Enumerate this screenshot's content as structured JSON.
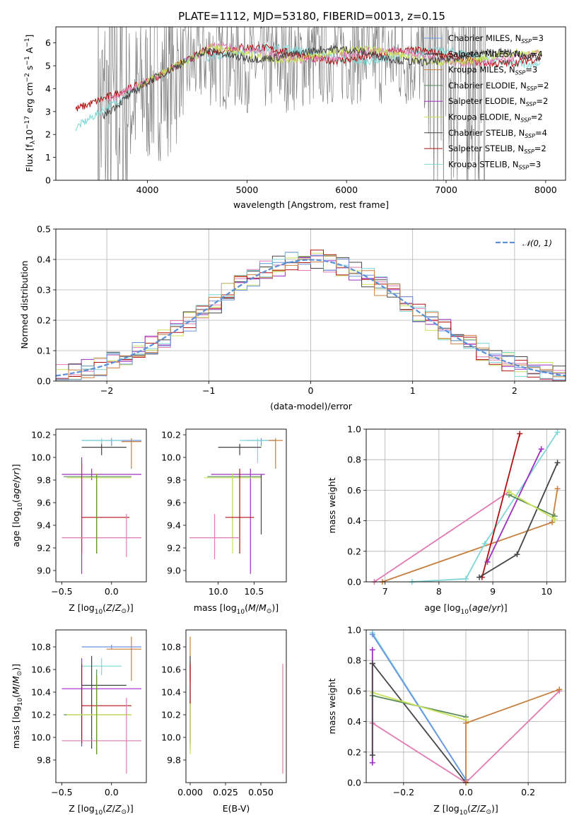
{
  "page": {
    "title": "PLATE=1112, MJD=53180, FIBERID=0013, z=0.15"
  },
  "colors": {
    "chabrier_miles": "#6b94e0",
    "salpeter_miles": "#1a1a1a",
    "kroupa_miles": "#c77f3e",
    "chabrier_elodie": "#5a8a5a",
    "salpeter_elodie": "#9b30c0",
    "kroupa_elodie": "#c9e35a",
    "chabrier_stelib": "#444444",
    "salpeter_stelib": "#b01010",
    "kroupa_stelib": "#7fd6d6",
    "data": "#808080",
    "normal": "#5b8fd8",
    "pink": "#e07ab0",
    "olive": "#6a9a20"
  },
  "chart_data": [
    {
      "type": "line",
      "id": "spectrum",
      "title": "PLATE=1112, MJD=53180, FIBERID=0013, z=0.15",
      "xlabel": "wavelength [Angstrom, rest frame]",
      "ylabel": "Flux [f",
      "ylabel_sub": "λ",
      "ylabel_rest": "10",
      "ylabel_exp1": "−17",
      "ylabel_mid": " erg cm",
      "ylabel_exp2": "−2",
      "ylabel_s": " s",
      "ylabel_exp3": "−1",
      "ylabel_a": " A",
      "ylabel_exp4": "−1",
      "ylabel_end": "]",
      "xlim": [
        3080,
        8200
      ],
      "ylim": [
        0,
        6.7
      ],
      "xticks": [
        "4000",
        "5000",
        "6000",
        "7000",
        "8000"
      ],
      "yticks": [
        "0",
        "1",
        "2",
        "3",
        "4",
        "5",
        "6"
      ],
      "legend": [
        {
          "name": "Chabrier MILES, N",
          "sub": "SSP",
          "tail": "=3"
        },
        {
          "name": "Salpeter MILES, N",
          "sub": "SSP",
          "tail": "=4"
        },
        {
          "name": "Kroupa MILES, N",
          "sub": "SSP",
          "tail": "=3"
        },
        {
          "name": "Chabrier ELODIE, N",
          "sub": "SSP",
          "tail": "=2"
        },
        {
          "name": "Salpeter ELODIE, N",
          "sub": "SSP",
          "tail": "=2"
        },
        {
          "name": "Kroupa ELODIE, N",
          "sub": "SSP",
          "tail": "=2"
        },
        {
          "name": "Chabrier STELIB, N",
          "sub": "SSP",
          "tail": "=4"
        },
        {
          "name": "Salpeter STELIB, N",
          "sub": "SSP",
          "tail": "=2"
        },
        {
          "name": "Kroupa STELIB, N",
          "sub": "SSP",
          "tail": "=3"
        }
      ],
      "legend_position": "upper right"
    },
    {
      "type": "line",
      "id": "residuals",
      "xlabel": "(data-model)/error",
      "ylabel": "Normed distribution",
      "xlim": [
        -2.5,
        2.5
      ],
      "ylim": [
        0,
        0.5
      ],
      "xticks": [
        "−2",
        "−1",
        "0",
        "1",
        "2"
      ],
      "yticks": [
        "0.0",
        "0.1",
        "0.2",
        "0.3",
        "0.4",
        "0.5"
      ],
      "legend": [
        "𝒩(0, 1)"
      ],
      "legend_position": "upper right",
      "grid": true,
      "bin_width": 0.125
    },
    {
      "type": "scatter",
      "id": "age_Z",
      "xlabel": "Z [log",
      "ylabel": "age  [log",
      "xlim": [
        -0.56,
        0.35
      ],
      "ylim": [
        8.9,
        10.25
      ],
      "xticks": [
        "−0.5",
        "0.0"
      ],
      "yticks": [
        "9.0",
        "9.2",
        "9.4",
        "9.6",
        "9.8",
        "10.0",
        "10.2"
      ],
      "points": [
        {
          "s": "chabrier_miles",
          "x": 0.0,
          "y": 10.15,
          "xe": [
            -0.3,
            0.3
          ],
          "ye": [
            10.1,
            10.17
          ]
        },
        {
          "s": "kroupa_miles",
          "x": 0.2,
          "y": 10.14,
          "xe": [
            0.1,
            0.3
          ],
          "ye": [
            9.9,
            10.17
          ]
        },
        {
          "s": "kroupa_stelib",
          "x": -0.1,
          "y": 10.15,
          "xe": [
            -0.3,
            0.1
          ],
          "ye": [
            10.12,
            10.17
          ]
        },
        {
          "s": "chabrier_stelib",
          "x": -0.1,
          "y": 10.09,
          "xe": [
            -0.3,
            0.15
          ],
          "ye": [
            10.02,
            10.12
          ]
        },
        {
          "s": "salpeter_elodie",
          "x": -0.2,
          "y": 9.85,
          "xe": [
            -0.5,
            0.3
          ],
          "ye": [
            9.8,
            9.9
          ]
        },
        {
          "s": "chabrier_elodie",
          "x": -0.15,
          "y": 9.83,
          "xe": [
            -0.48,
            0.2
          ],
          "ye": [
            9.15,
            9.85
          ]
        },
        {
          "s": "kroupa_elodie",
          "x": -0.15,
          "y": 9.82,
          "xe": [
            -0.45,
            0.2
          ],
          "ye": [
            9.75,
            9.86
          ]
        },
        {
          "s": "salpeter_stelib",
          "x": -0.3,
          "y": 9.47,
          "xe": [
            -0.3,
            0.18
          ],
          "ye": [
            9.15,
            9.95
          ]
        },
        {
          "s": "salpeter_elodie",
          "x": -0.3,
          "y": 9.45,
          "xe": [
            -0.3,
            -0.3
          ],
          "ye": [
            8.97,
            10.0
          ]
        },
        {
          "s": "pink",
          "x": 0.15,
          "y": 9.29,
          "xe": [
            -0.5,
            0.3
          ],
          "ye": [
            9.12,
            9.5
          ]
        },
        {
          "s": "olive",
          "x": -0.15,
          "y": 9.82,
          "xe": [
            -0.15,
            -0.15
          ],
          "ye": [
            9.15,
            9.85
          ]
        }
      ]
    },
    {
      "type": "scatter",
      "id": "age_mass",
      "xlabel": "mass [log",
      "xlim": [
        9.55,
        10.95
      ],
      "ylim": [
        8.9,
        10.25
      ],
      "xticks": [
        "10.0",
        "10.5"
      ],
      "yticks": [
        "9.0",
        "9.2",
        "9.4",
        "9.6",
        "9.8",
        "10.0",
        "10.2"
      ],
      "points": [
        {
          "s": "chabrier_miles",
          "x": 10.6,
          "y": 10.15,
          "xe": [
            10.4,
            10.8
          ],
          "ye": [
            10.1,
            10.17
          ]
        },
        {
          "s": "kroupa_miles",
          "x": 10.8,
          "y": 10.15,
          "xe": [
            10.7,
            10.9
          ],
          "ye": [
            9.9,
            10.17
          ]
        },
        {
          "s": "kroupa_stelib",
          "x": 10.55,
          "y": 10.15,
          "xe": [
            10.3,
            10.7
          ],
          "ye": [
            9.95,
            10.17
          ]
        },
        {
          "s": "chabrier_stelib",
          "x": 10.3,
          "y": 10.09,
          "xe": [
            10.0,
            10.6
          ],
          "ye": [
            10.02,
            10.12
          ]
        },
        {
          "s": "salpeter_elodie",
          "x": 10.45,
          "y": 9.85,
          "xe": [
            9.9,
            10.65
          ],
          "ye": [
            8.97,
            9.9
          ]
        },
        {
          "s": "chabrier_elodie",
          "x": 10.2,
          "y": 9.83,
          "xe": [
            9.85,
            10.6
          ],
          "ye": [
            9.3,
            9.85
          ]
        },
        {
          "s": "kroupa_elodie",
          "x": 10.2,
          "y": 9.82,
          "xe": [
            9.8,
            10.6
          ],
          "ye": [
            9.15,
            9.86
          ]
        },
        {
          "s": "salpeter_stelib",
          "x": 10.3,
          "y": 9.47,
          "xe": [
            10.1,
            10.5
          ],
          "ye": [
            9.15,
            9.9
          ]
        },
        {
          "s": "pink",
          "x": 9.95,
          "y": 9.29,
          "xe": [
            9.6,
            10.3
          ],
          "ye": [
            9.1,
            9.5
          ]
        },
        {
          "s": "chabrier_stelib",
          "x": 10.6,
          "y": 9.6,
          "xe": [
            10.6,
            10.6
          ],
          "ye": [
            9.32,
            9.85
          ]
        }
      ]
    },
    {
      "type": "line",
      "id": "weight_age",
      "xlabel": "age  [log",
      "ylabel": "mass weight",
      "xlim": [
        6.65,
        10.35
      ],
      "ylim": [
        0,
        1
      ],
      "xticks": [
        "7",
        "8",
        "9",
        "10"
      ],
      "yticks": [
        "0.0",
        "0.2",
        "0.4",
        "0.6",
        "0.8",
        "1.0"
      ],
      "grid": true,
      "series": [
        {
          "s": "pink",
          "x": [
            6.8,
            9.3
          ],
          "y": [
            0.0,
            0.59
          ]
        },
        {
          "s": "kroupa_miles",
          "x": [
            6.95,
            10.1,
            10.2
          ],
          "y": [
            0.0,
            0.39,
            0.61
          ]
        },
        {
          "s": "kroupa_stelib",
          "x": [
            7.5,
            8.5,
            8.85,
            10.2
          ],
          "y": [
            0.0,
            0.02,
            0.25,
            0.98
          ]
        },
        {
          "s": "salpeter_stelib",
          "x": [
            8.8,
            9.5
          ],
          "y": [
            0.03,
            0.97
          ]
        },
        {
          "s": "salpeter_elodie",
          "x": [
            8.9,
            9.9
          ],
          "y": [
            0.13,
            0.87
          ]
        },
        {
          "s": "chabrier_stelib",
          "x": [
            8.75,
            9.45,
            10.2
          ],
          "y": [
            0.03,
            0.18,
            0.78
          ]
        },
        {
          "s": "chabrier_elodie",
          "x": [
            9.3,
            10.15
          ],
          "y": [
            0.57,
            0.43
          ]
        },
        {
          "s": "kroupa_elodie",
          "x": [
            9.3,
            10.15
          ],
          "y": [
            0.59,
            0.41
          ]
        }
      ]
    },
    {
      "type": "scatter",
      "id": "mass_Z",
      "xlabel": "Z [log",
      "ylabel": "mass [log",
      "xlim": [
        -0.56,
        0.35
      ],
      "ylim": [
        9.6,
        10.95
      ],
      "xticks": [
        "−0.5",
        "0.0"
      ],
      "yticks": [
        "9.8",
        "10.0",
        "10.2",
        "10.4",
        "10.6",
        "10.8"
      ],
      "points": [
        {
          "s": "chabrier_miles",
          "x": 0.0,
          "y": 10.8,
          "xe": [
            -0.3,
            0.3
          ],
          "ye": [
            10.78,
            10.82
          ]
        },
        {
          "s": "kroupa_miles",
          "x": 0.2,
          "y": 10.78,
          "xe": [
            -0.05,
            0.3
          ],
          "ye": [
            10.5,
            10.89
          ]
        },
        {
          "s": "kroupa_stelib",
          "x": -0.1,
          "y": 10.63,
          "xe": [
            -0.3,
            0.1
          ],
          "ye": [
            10.55,
            10.7
          ]
        },
        {
          "s": "chabrier_stelib",
          "x": -0.2,
          "y": 10.46,
          "xe": [
            -0.3,
            0.15
          ],
          "ye": [
            9.9,
            10.72
          ]
        },
        {
          "s": "salpeter_elodie",
          "x": -0.3,
          "y": 10.43,
          "xe": [
            -0.5,
            0.3
          ],
          "ye": [
            9.92,
            10.7
          ]
        },
        {
          "s": "salpeter_stelib",
          "x": -0.3,
          "y": 10.28,
          "xe": [
            -0.3,
            0.2
          ],
          "ye": [
            9.95,
            10.65
          ]
        },
        {
          "s": "chabrier_elodie",
          "x": -0.15,
          "y": 10.2,
          "xe": [
            -0.48,
            0.2
          ],
          "ye": [
            9.85,
            10.6
          ]
        },
        {
          "s": "kroupa_elodie",
          "x": -0.15,
          "y": 10.2,
          "xe": [
            -0.45,
            0.2
          ],
          "ye": [
            10.1,
            10.3
          ]
        },
        {
          "s": "pink",
          "x": 0.15,
          "y": 9.97,
          "xe": [
            -0.5,
            0.3
          ],
          "ye": [
            9.68,
            10.35
          ]
        },
        {
          "s": "olive",
          "x": -0.15,
          "y": 10.2,
          "xe": [
            -0.15,
            -0.15
          ],
          "ye": [
            9.85,
            10.55
          ]
        }
      ]
    },
    {
      "type": "scatter",
      "id": "mass_ebv",
      "xlabel": "E(B-V)",
      "xlim": [
        -0.003,
        0.068
      ],
      "ylim": [
        9.6,
        10.95
      ],
      "xticks": [
        "0.000",
        "0.025",
        "0.050"
      ],
      "yticks": [
        "9.8",
        "10.0",
        "10.2",
        "10.4",
        "10.6",
        "10.8"
      ],
      "points": [
        {
          "s": "kroupa_miles",
          "x": 0.0,
          "y": 10.78,
          "ye": [
            10.5,
            10.89
          ]
        },
        {
          "s": "kroupa_stelib",
          "x": 0.0,
          "y": 10.63,
          "ye": [
            10.55,
            10.7
          ]
        },
        {
          "s": "chabrier_stelib",
          "x": 0.0,
          "y": 10.46,
          "ye": [
            9.9,
            10.72
          ]
        },
        {
          "s": "salpeter_stelib",
          "x": 0.0,
          "y": 10.28,
          "ye": [
            9.95,
            10.65
          ]
        },
        {
          "s": "kroupa_elodie",
          "x": 0.0,
          "y": 10.2,
          "ye": [
            9.85,
            10.3
          ]
        },
        {
          "s": "pink",
          "x": 0.0655,
          "y": 9.97,
          "ye": [
            9.68,
            10.65
          ]
        }
      ]
    },
    {
      "type": "line",
      "id": "weight_Z",
      "xlabel": "Z [log",
      "ylabel": "mass weight",
      "xlim": [
        -0.32,
        0.32
      ],
      "ylim": [
        0,
        1
      ],
      "xticks": [
        "−0.2",
        "0.0",
        "0.2"
      ],
      "yticks": [
        "0.0",
        "0.2",
        "0.4",
        "0.6",
        "0.8",
        "1.0"
      ],
      "grid": true,
      "series": [
        {
          "s": "kroupa_stelib",
          "x": [
            -0.3,
            0.0
          ],
          "y": [
            0.98,
            0.02
          ]
        },
        {
          "s": "chabrier_miles",
          "x": [
            -0.3,
            0.0
          ],
          "y": [
            0.97,
            0.02
          ]
        },
        {
          "s": "chabrier_stelib",
          "x": [
            -0.3,
            0.0
          ],
          "y": [
            0.78,
            0.0
          ]
        },
        {
          "s": "salpeter_elodie",
          "x": [
            -0.3,
            -0.3
          ],
          "y": [
            0.87,
            0.13
          ]
        },
        {
          "s": "chabrier_elodie",
          "x": [
            -0.3,
            0.0
          ],
          "y": [
            0.57,
            0.43
          ]
        },
        {
          "s": "kroupa_elodie",
          "x": [
            -0.3,
            0.0
          ],
          "y": [
            0.59,
            0.41
          ]
        },
        {
          "s": "pink",
          "x": [
            -0.3,
            0.0,
            0.3
          ],
          "y": [
            0.39,
            0.0,
            0.6
          ]
        },
        {
          "s": "kroupa_miles",
          "x": [
            0.0,
            0.0,
            0.3
          ],
          "y": [
            0.0,
            0.39,
            0.61
          ]
        },
        {
          "s": "chabrier_stelib",
          "x": [
            -0.3,
            -0.3
          ],
          "y": [
            0.78,
            0.18
          ]
        }
      ]
    }
  ]
}
